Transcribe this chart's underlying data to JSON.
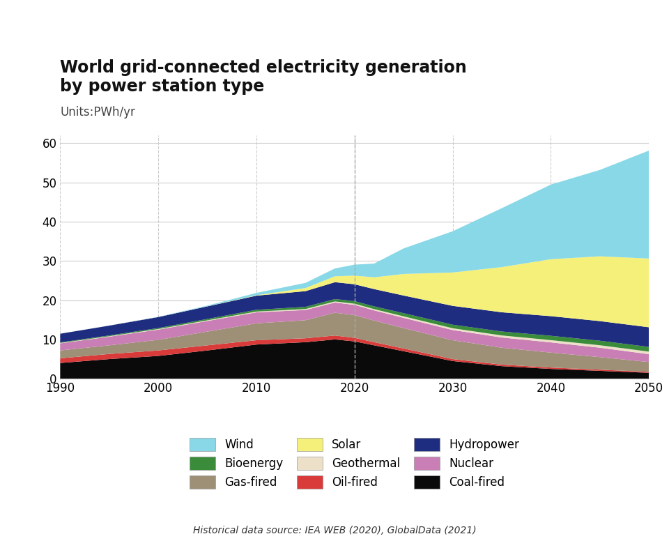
{
  "title": "World grid-connected electricity generation\nby power station type",
  "units_label": "Units:PWh/yr",
  "source_text": "Historical data source: IEA WEB (2020), GlobalData (2021)",
  "years": [
    1990,
    1995,
    2000,
    2005,
    2010,
    2015,
    2018,
    2020,
    2022,
    2025,
    2030,
    2035,
    2040,
    2045,
    2050
  ],
  "series": {
    "Coal-fired": [
      4.0,
      5.0,
      5.8,
      7.2,
      8.7,
      9.3,
      10.0,
      9.5,
      8.5,
      7.0,
      4.5,
      3.2,
      2.5,
      2.0,
      1.5
    ],
    "Oil-fired": [
      1.2,
      1.3,
      1.4,
      1.3,
      1.1,
      1.0,
      1.0,
      0.9,
      0.8,
      0.7,
      0.5,
      0.4,
      0.35,
      0.3,
      0.25
    ],
    "Gas-fired": [
      2.0,
      2.2,
      2.7,
      3.5,
      4.3,
      4.6,
      5.8,
      5.8,
      5.5,
      5.2,
      4.8,
      4.3,
      3.8,
      3.2,
      2.5
    ],
    "Nuclear": [
      1.8,
      2.2,
      2.6,
      2.7,
      2.8,
      2.6,
      2.6,
      2.6,
      2.6,
      2.6,
      2.6,
      2.6,
      2.6,
      2.4,
      2.0
    ],
    "Geothermal": [
      0.1,
      0.12,
      0.15,
      0.17,
      0.2,
      0.25,
      0.28,
      0.3,
      0.32,
      0.38,
      0.45,
      0.52,
      0.58,
      0.62,
      0.65
    ],
    "Bioenergy": [
      0.15,
      0.2,
      0.25,
      0.35,
      0.45,
      0.55,
      0.6,
      0.65,
      0.7,
      0.8,
      0.9,
      1.0,
      1.1,
      1.15,
      1.2
    ],
    "Hydropower": [
      2.2,
      2.5,
      2.8,
      3.2,
      3.6,
      4.0,
      4.3,
      4.3,
      4.4,
      4.5,
      4.8,
      4.9,
      5.0,
      5.0,
      5.0
    ],
    "Solar": [
      0.0,
      0.0,
      0.01,
      0.02,
      0.1,
      0.8,
      1.5,
      2.2,
      3.0,
      5.5,
      8.5,
      11.5,
      14.5,
      16.5,
      17.5
    ],
    "Wind": [
      0.0,
      0.02,
      0.05,
      0.18,
      0.6,
      1.3,
      2.0,
      2.8,
      3.5,
      6.5,
      10.5,
      15.0,
      19.0,
      22.0,
      27.5
    ]
  },
  "colors": {
    "Coal-fired": "#0a0a0a",
    "Oil-fired": "#d93b3b",
    "Gas-fired": "#9e9077",
    "Nuclear": "#c97fb5",
    "Geothermal": "#ede0c8",
    "Bioenergy": "#3a8c3a",
    "Hydropower": "#1f2d80",
    "Solar": "#f5f07a",
    "Wind": "#88d8e8"
  },
  "stack_order": [
    "Coal-fired",
    "Oil-fired",
    "Gas-fired",
    "Nuclear",
    "Geothermal",
    "Bioenergy",
    "Hydropower",
    "Solar",
    "Wind"
  ],
  "ylim": [
    0,
    62
  ],
  "yticks": [
    0,
    10,
    20,
    30,
    40,
    50,
    60
  ],
  "xlim": [
    1990,
    2050
  ],
  "xticks": [
    1990,
    2000,
    2010,
    2020,
    2030,
    2040,
    2050
  ],
  "vline_x": 2020,
  "background_color": "#ffffff",
  "plot_bg_color": "#ffffff",
  "grid_color": "#cccccc",
  "title_fontsize": 17,
  "label_fontsize": 12,
  "legend_fontsize": 12
}
